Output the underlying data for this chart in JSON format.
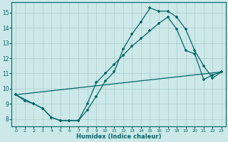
{
  "xlabel": "Humidex (Indice chaleur)",
  "bg_color": "#cce8e8",
  "grid_color": "#aacccc",
  "line_color": "#006666",
  "xlim": [
    -0.5,
    23.5
  ],
  "ylim": [
    7.5,
    15.7
  ],
  "yticks": [
    8,
    9,
    10,
    11,
    12,
    13,
    14,
    15
  ],
  "xticks": [
    0,
    1,
    2,
    3,
    4,
    5,
    6,
    7,
    8,
    9,
    10,
    11,
    12,
    13,
    14,
    15,
    16,
    17,
    18,
    19,
    20,
    21,
    22,
    23
  ],
  "curve1_x": [
    0,
    1,
    2,
    3,
    4,
    5,
    6,
    7,
    8,
    9,
    10,
    11,
    12,
    13,
    14,
    15,
    16,
    17,
    18,
    19,
    20,
    21,
    22,
    23
  ],
  "curve1_y": [
    9.6,
    9.2,
    9.0,
    8.7,
    8.1,
    7.9,
    7.9,
    7.9,
    8.6,
    9.5,
    10.5,
    11.1,
    12.6,
    13.6,
    14.4,
    15.3,
    15.1,
    15.1,
    14.7,
    13.9,
    12.5,
    11.5,
    10.7,
    11.1
  ],
  "curve2_x": [
    0,
    2,
    3,
    4,
    5,
    6,
    7,
    8,
    9,
    10,
    11,
    12,
    13,
    14,
    15,
    16,
    17,
    18,
    19,
    20,
    21,
    22,
    23
  ],
  "curve2_y": [
    9.6,
    9.0,
    8.7,
    8.1,
    7.9,
    7.9,
    7.9,
    9.0,
    10.4,
    11.0,
    11.6,
    12.2,
    12.8,
    13.3,
    13.8,
    14.3,
    14.7,
    13.9,
    12.5,
    12.3,
    10.6,
    10.9,
    11.1
  ],
  "line3_x": [
    0,
    23
  ],
  "line3_y": [
    9.6,
    11.1
  ]
}
